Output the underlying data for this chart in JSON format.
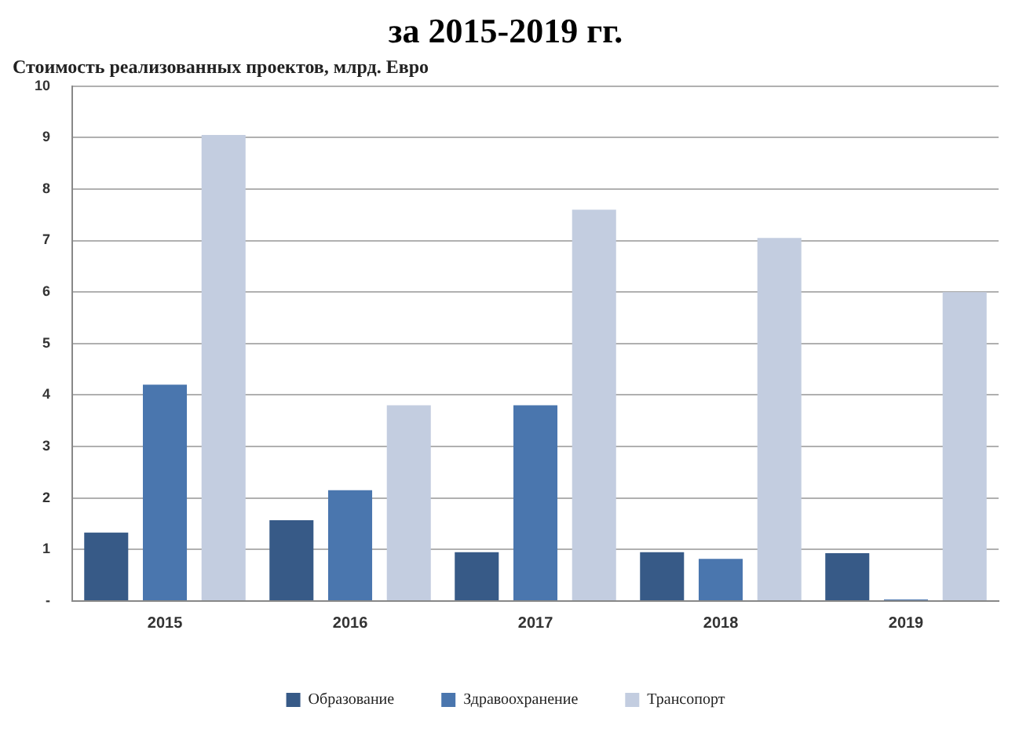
{
  "chart_data": {
    "type": "bar",
    "title": "за 2015-2019 гг.",
    "ylabel": "Стоимость реализованных проектов, млрд. Евро",
    "categories": [
      "2015",
      "2016",
      "2017",
      "2018",
      "2019"
    ],
    "series": [
      {
        "name": "Образование",
        "color": "#375a87",
        "values": [
          1.33,
          1.57,
          0.95,
          0.95,
          0.93
        ]
      },
      {
        "name": "Здравоохранение",
        "color": "#4a76ae",
        "values": [
          4.2,
          2.15,
          3.8,
          0.82,
          0.03
        ]
      },
      {
        "name": "Трансопорт",
        "color": "#c3cde0",
        "values": [
          9.05,
          3.8,
          7.6,
          7.05,
          6.0
        ]
      }
    ],
    "ylim": [
      0,
      10
    ],
    "yticks": [
      {
        "value": 0,
        "label": "-"
      },
      1,
      2,
      3,
      4,
      5,
      6,
      7,
      8,
      9,
      10
    ],
    "grid": "y",
    "legend": "bottom"
  }
}
